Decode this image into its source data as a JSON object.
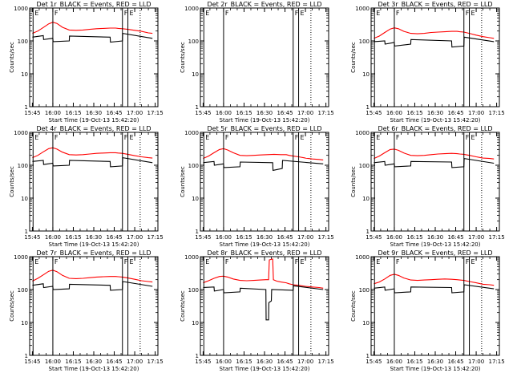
{
  "window": {
    "title": ""
  },
  "chart_data": [
    {
      "type": "line",
      "title": "Det 1r_BLACK = Events, RED = LLD",
      "xlabel": "Start Time (19-Oct-13 15:42:20)",
      "ylabel": "Counts/sec",
      "x_ticks": [
        "15:45",
        "16:00",
        "16:15",
        "16:30",
        "16:45",
        "17:00",
        "17:15"
      ],
      "y_ticks": [
        "1",
        "10",
        "100",
        "1000"
      ],
      "y_scale": "log",
      "ylim": [
        1,
        1000
      ],
      "series": [
        {
          "color": "#ff0000",
          "x": [
            0,
            4,
            8,
            12,
            15,
            18,
            22,
            27,
            32,
            37,
            42,
            47,
            52,
            57,
            61,
            63,
            66,
            70,
            75,
            80,
            85,
            88
          ],
          "y": [
            170,
            200,
            255,
            330,
            370,
            340,
            260,
            215,
            210,
            215,
            225,
            235,
            240,
            245,
            245,
            240,
            235,
            225,
            210,
            195,
            175,
            170
          ]
        },
        {
          "color": "#000000",
          "x": [
            0,
            8,
            8.2,
            15,
            15.2,
            27,
            27.2,
            57,
            57.2,
            66,
            66.2,
            88
          ],
          "y": [
            130,
            145,
            110,
            120,
            95,
            100,
            140,
            130,
            92,
            100,
            170,
            120
          ]
        }
      ],
      "markers": [
        {
          "x": 15,
          "label": "F"
        },
        {
          "x": 66,
          "label": "F"
        },
        {
          "x": 0.5,
          "label": "E"
        },
        {
          "x": 70,
          "label": "E"
        }
      ],
      "dotted": [
        79
      ]
    },
    {
      "type": "line",
      "title": "Det 2r_BLACK = Events, RED = LLD",
      "xlabel": "Start Time (19-Oct-13 15:42:20)",
      "ylabel": "Counts/sec",
      "x_ticks": [
        "15:45",
        "16:00",
        "16:15",
        "16:30",
        "16:45",
        "17:00",
        "17:15"
      ],
      "y_ticks": [
        "1",
        "10",
        "100",
        "1000"
      ],
      "y_scale": "log",
      "ylim": [
        1,
        1000
      ],
      "series": [],
      "markers": [
        {
          "x": 15,
          "label": "F"
        },
        {
          "x": 66,
          "label": "F"
        },
        {
          "x": 0.5,
          "label": "E"
        },
        {
          "x": 70,
          "label": "E"
        }
      ],
      "dotted": [
        79
      ]
    },
    {
      "type": "line",
      "title": "Det 3r_BLACK = Events, RED = LLD",
      "xlabel": "Start Time (19-Oct-13 15:42:20)",
      "ylabel": "Counts/sec",
      "x_ticks": [
        "15:45",
        "16:00",
        "16:15",
        "16:30",
        "16:45",
        "17:00",
        "17:15"
      ],
      "y_ticks": [
        "1",
        "10",
        "100",
        "1000"
      ],
      "y_scale": "log",
      "ylim": [
        1,
        1000
      ],
      "series": [
        {
          "color": "#ff0000",
          "x": [
            0,
            4,
            8,
            12,
            15,
            18,
            22,
            27,
            32,
            37,
            42,
            47,
            52,
            57,
            61,
            63,
            66,
            70,
            75,
            80,
            85,
            88
          ],
          "y": [
            120,
            140,
            180,
            230,
            250,
            235,
            195,
            170,
            165,
            170,
            180,
            185,
            190,
            195,
            195,
            190,
            185,
            170,
            150,
            135,
            125,
            120
          ]
        },
        {
          "color": "#000000",
          "x": [
            0,
            8,
            8.2,
            15,
            15.2,
            27,
            27.2,
            57,
            57.2,
            66,
            66.2,
            88
          ],
          "y": [
            95,
            100,
            80,
            90,
            70,
            80,
            110,
            100,
            65,
            70,
            130,
            95
          ]
        }
      ],
      "markers": [
        {
          "x": 15,
          "label": "F"
        },
        {
          "x": 66,
          "label": "F"
        },
        {
          "x": 0.5,
          "label": "E"
        },
        {
          "x": 70,
          "label": "E"
        }
      ],
      "dotted": [
        79
      ]
    },
    {
      "type": "line",
      "title": "Det 4r_BLACK = Events, RED = LLD",
      "xlabel": "Start Time (19-Oct-13 15:42:20)",
      "ylabel": "Counts/sec",
      "x_ticks": [
        "15:45",
        "16:00",
        "16:15",
        "16:30",
        "16:45",
        "17:00",
        "17:15"
      ],
      "y_ticks": [
        "1",
        "10",
        "100",
        "1000"
      ],
      "y_scale": "log",
      "ylim": [
        1,
        1000
      ],
      "series": [
        {
          "color": "#ff0000",
          "x": [
            0,
            4,
            8,
            12,
            15,
            18,
            22,
            27,
            32,
            37,
            42,
            47,
            52,
            57,
            61,
            63,
            66,
            70,
            75,
            80,
            85,
            88
          ],
          "y": [
            170,
            200,
            255,
            320,
            340,
            310,
            250,
            210,
            205,
            210,
            220,
            230,
            235,
            240,
            240,
            235,
            230,
            215,
            195,
            180,
            170,
            165
          ]
        },
        {
          "color": "#000000",
          "x": [
            0,
            8,
            8.2,
            15,
            15.2,
            27,
            27.2,
            57,
            57.2,
            66,
            66.2,
            88
          ],
          "y": [
            130,
            140,
            105,
            115,
            95,
            100,
            140,
            130,
            90,
            95,
            170,
            120
          ]
        }
      ],
      "markers": [
        {
          "x": 15,
          "label": "F"
        },
        {
          "x": 66,
          "label": "F"
        },
        {
          "x": 0.5,
          "label": "E"
        },
        {
          "x": 70,
          "label": "E"
        }
      ],
      "dotted": [
        79
      ]
    },
    {
      "type": "line",
      "title": "Det 5r_BLACK = Events, RED = LLD",
      "xlabel": "Start Time (19-Oct-13 15:42:20)",
      "ylabel": "Counts/sec",
      "x_ticks": [
        "15:45",
        "16:00",
        "16:15",
        "16:30",
        "16:45",
        "17:00",
        "17:15"
      ],
      "y_ticks": [
        "1",
        "10",
        "100",
        "1000"
      ],
      "y_scale": "log",
      "ylim": [
        1,
        1000
      ],
      "series": [
        {
          "color": "#ff0000",
          "x": [
            0,
            4,
            8,
            12,
            15,
            18,
            22,
            27,
            32,
            37,
            42,
            47,
            52,
            57,
            61,
            63,
            66,
            70,
            75,
            80,
            85,
            88
          ],
          "y": [
            160,
            190,
            240,
            300,
            320,
            290,
            240,
            200,
            195,
            200,
            205,
            210,
            215,
            210,
            210,
            200,
            190,
            180,
            165,
            155,
            150,
            145
          ]
        },
        {
          "color": "#000000",
          "x": [
            0,
            8,
            8.2,
            15,
            15.2,
            27,
            27.2,
            51,
            51.2,
            58,
            58.2,
            88
          ],
          "y": [
            120,
            130,
            100,
            110,
            85,
            90,
            125,
            120,
            70,
            80,
            140,
            110
          ]
        }
      ],
      "markers": [
        {
          "x": 15,
          "label": "F"
        },
        {
          "x": 66,
          "label": "F"
        },
        {
          "x": 0.5,
          "label": "E"
        },
        {
          "x": 70,
          "label": "E"
        }
      ],
      "dotted": [
        79
      ]
    },
    {
      "type": "line",
      "title": "Det 6r_BLACK = Events, RED = LLD",
      "xlabel": "Start Time (19-Oct-13 15:42:20)",
      "ylabel": "Counts/sec",
      "x_ticks": [
        "15:45",
        "16:00",
        "16:15",
        "16:30",
        "16:45",
        "17:00",
        "17:15"
      ],
      "y_ticks": [
        "1",
        "10",
        "100",
        "1000"
      ],
      "y_scale": "log",
      "ylim": [
        1,
        1000
      ],
      "series": [
        {
          "color": "#ff0000",
          "x": [
            0,
            4,
            8,
            12,
            15,
            18,
            22,
            27,
            32,
            37,
            42,
            47,
            52,
            57,
            61,
            63,
            66,
            70,
            75,
            80,
            85,
            88
          ],
          "y": [
            160,
            190,
            240,
            300,
            310,
            285,
            235,
            200,
            195,
            200,
            210,
            220,
            225,
            230,
            225,
            220,
            215,
            200,
            180,
            165,
            160,
            155
          ]
        },
        {
          "color": "#000000",
          "x": [
            0,
            8,
            8.2,
            15,
            15.2,
            27,
            27.2,
            57,
            57.2,
            66,
            66.2,
            88
          ],
          "y": [
            120,
            130,
            100,
            110,
            90,
            95,
            130,
            125,
            85,
            90,
            160,
            115
          ]
        }
      ],
      "markers": [
        {
          "x": 15,
          "label": "F"
        },
        {
          "x": 66,
          "label": "F"
        },
        {
          "x": 0.5,
          "label": "E"
        },
        {
          "x": 70,
          "label": "E"
        }
      ],
      "dotted": [
        79
      ]
    },
    {
      "type": "line",
      "title": "Det 7r_BLACK = Events, RED = LLD",
      "xlabel": "Start Time (19-Oct-13 15:42:20)",
      "ylabel": "Counts/sec",
      "x_ticks": [
        "15:45",
        "16:00",
        "16:15",
        "16:30",
        "16:45",
        "17:00",
        "17:15"
      ],
      "y_ticks": [
        "1",
        "10",
        "100",
        "1000"
      ],
      "y_scale": "log",
      "ylim": [
        1,
        1000
      ],
      "series": [
        {
          "color": "#ff0000",
          "x": [
            0,
            4,
            8,
            12,
            15,
            18,
            22,
            27,
            32,
            37,
            42,
            47,
            52,
            57,
            61,
            63,
            66,
            70,
            75,
            80,
            85,
            88
          ],
          "y": [
            180,
            220,
            280,
            360,
            390,
            350,
            270,
            220,
            215,
            220,
            230,
            240,
            245,
            250,
            250,
            245,
            240,
            225,
            205,
            185,
            175,
            170
          ]
        },
        {
          "color": "#000000",
          "x": [
            0,
            8,
            8.2,
            15,
            15.2,
            27,
            27.2,
            57,
            57.2,
            66,
            66.2,
            88
          ],
          "y": [
            135,
            150,
            115,
            125,
            100,
            105,
            145,
            135,
            95,
            100,
            175,
            125
          ]
        }
      ],
      "markers": [
        {
          "x": 15,
          "label": "F"
        },
        {
          "x": 66,
          "label": "F"
        },
        {
          "x": 0.5,
          "label": "E"
        },
        {
          "x": 70,
          "label": "E"
        }
      ],
      "dotted": [
        79
      ]
    },
    {
      "type": "line",
      "title": "Det 8r_BLACK = Events, RED = LLD",
      "xlabel": "Start Time (19-Oct-13 15:42:20)",
      "ylabel": "Counts/sec",
      "x_ticks": [
        "15:45",
        "16:00",
        "16:15",
        "16:30",
        "16:45",
        "17:00",
        "17:15"
      ],
      "y_ticks": [
        "1",
        "10",
        "100",
        "1000"
      ],
      "y_scale": "log",
      "ylim": [
        1,
        1000
      ],
      "series": [
        {
          "color": "#ff0000",
          "x": [
            0,
            4,
            8,
            12,
            15,
            18,
            22,
            27,
            32,
            37,
            42,
            46,
            48,
            48.5,
            51,
            51.5,
            54,
            57,
            61,
            63,
            66,
            70,
            75,
            80,
            85,
            88
          ],
          "y": [
            160,
            185,
            220,
            250,
            255,
            240,
            210,
            190,
            185,
            190,
            195,
            200,
            200,
            800,
            850,
            200,
            180,
            170,
            160,
            150,
            140,
            135,
            125,
            120,
            115,
            110
          ]
        },
        {
          "color": "#000000",
          "x": [
            0,
            8,
            8.2,
            15,
            15.2,
            27,
            27.2,
            46,
            46.2,
            48,
            48.2,
            50,
            50.2,
            66,
            66.2,
            88
          ],
          "y": [
            115,
            120,
            90,
            100,
            80,
            85,
            110,
            100,
            12,
            12,
            40,
            45,
            100,
            95,
            130,
            100
          ]
        }
      ],
      "markers": [
        {
          "x": 15,
          "label": "F"
        },
        {
          "x": 66,
          "label": "F"
        },
        {
          "x": 0.5,
          "label": "E"
        },
        {
          "x": 70,
          "label": "E"
        }
      ],
      "dotted": [
        79
      ]
    },
    {
      "type": "line",
      "title": "Det 9r_BLACK = Events, RED = LLD",
      "xlabel": "Start Time (19-Oct-13 15:42:20)",
      "ylabel": "Counts/sec",
      "x_ticks": [
        "15:45",
        "16:00",
        "16:15",
        "16:30",
        "16:45",
        "17:00",
        "17:15"
      ],
      "y_ticks": [
        "1",
        "10",
        "100",
        "1000"
      ],
      "y_scale": "log",
      "ylim": [
        1,
        1000
      ],
      "series": [
        {
          "color": "#ff0000",
          "x": [
            0,
            4,
            8,
            12,
            15,
            18,
            22,
            27,
            32,
            37,
            42,
            47,
            52,
            57,
            61,
            63,
            66,
            70,
            75,
            80,
            85,
            88
          ],
          "y": [
            150,
            170,
            210,
            270,
            290,
            270,
            225,
            195,
            190,
            195,
            200,
            205,
            210,
            205,
            200,
            195,
            190,
            175,
            160,
            145,
            140,
            135
          ]
        },
        {
          "color": "#000000",
          "x": [
            0,
            8,
            8.2,
            15,
            15.2,
            27,
            27.2,
            57,
            57.2,
            66,
            66.2,
            88
          ],
          "y": [
            110,
            120,
            95,
            105,
            80,
            85,
            120,
            115,
            80,
            85,
            140,
            105
          ]
        }
      ],
      "markers": [
        {
          "x": 15,
          "label": "F"
        },
        {
          "x": 66,
          "label": "F"
        },
        {
          "x": 0.5,
          "label": "E"
        },
        {
          "x": 70,
          "label": "E"
        }
      ],
      "dotted": [
        79
      ]
    }
  ]
}
